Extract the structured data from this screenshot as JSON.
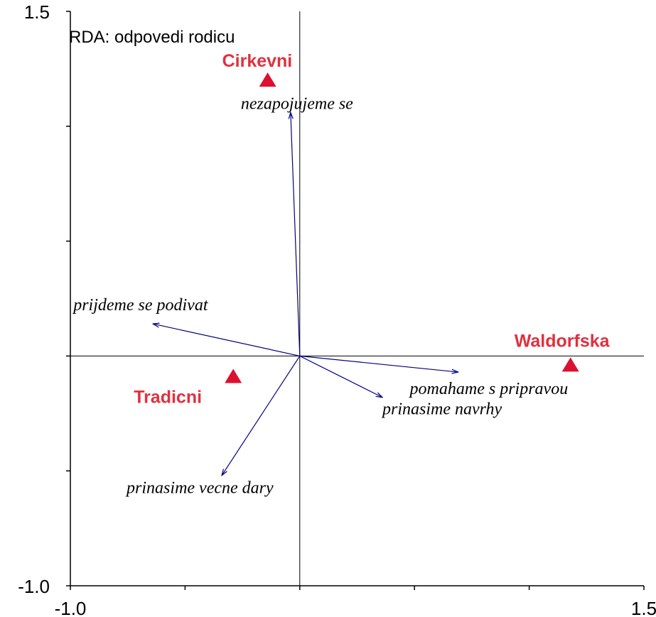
{
  "chart_data": {
    "type": "biplot",
    "title": "RDA: odpovedi rodicu",
    "xlim": [
      -1.0,
      1.5
    ],
    "ylim": [
      -1.0,
      1.5
    ],
    "xticks": [
      {
        "value": -1.0,
        "label": "-1.0"
      },
      -0.5,
      0,
      0.5,
      1,
      {
        "value": 1.5,
        "label": "1.5"
      }
    ],
    "yticks": [
      {
        "value": -1.0,
        "label": "-1.0"
      },
      -0.5,
      0,
      0.5,
      1,
      {
        "value": 1.5,
        "label": "1.5"
      }
    ],
    "arrows": {
      "color": "#000080",
      "names": [
        "nezapojujeme se",
        "prijdeme se podivat",
        "pomahame s pripravou",
        "prinasime navrhy",
        "prinasime vecne dary"
      ],
      "x": [
        -0.04,
        -0.64,
        0.69,
        0.36,
        -0.34
      ],
      "y": [
        1.06,
        0.14,
        -0.07,
        -0.18,
        -0.52
      ]
    },
    "samples": {
      "color": "#dc1030",
      "names": [
        "Cirkevni",
        "Waldorfska",
        "Tradicni"
      ],
      "x": [
        -0.14,
        1.18,
        -0.29
      ],
      "y": [
        1.2,
        -0.04,
        -0.09
      ]
    }
  }
}
